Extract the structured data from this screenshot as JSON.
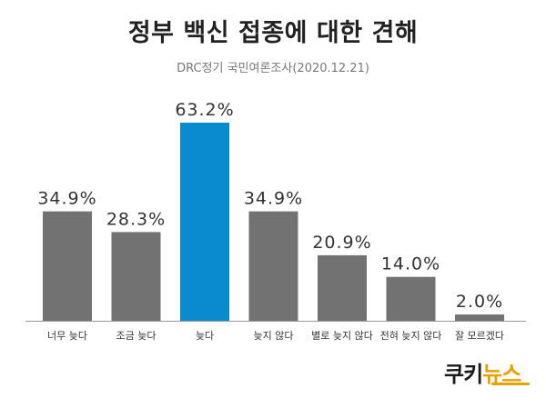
{
  "chart_data": {
    "type": "bar",
    "title": "정부 백신 접종에 대한 견해",
    "subtitle": "DRC정기 국민여론조사(2020.12.21)",
    "categories": [
      "너무 늦다",
      "조금 늦다",
      "늦다",
      "늦지 않다",
      "별로 늦지 않다",
      "전혀 늦지 않다",
      "잘 모르겠다"
    ],
    "values": [
      34.9,
      28.3,
      63.2,
      34.9,
      20.9,
      14.0,
      2.0
    ],
    "value_labels": [
      "34.9%",
      "28.3%",
      "63.2%",
      "34.9%",
      "20.9%",
      "14.0%",
      "2.0%"
    ],
    "highlight_index": 2,
    "ylim": [
      0,
      63.2
    ],
    "grid": false,
    "colors": {
      "default": "#727272",
      "highlight": "#0a8bd0",
      "axis": "#999999",
      "value_text": "#333333",
      "category_text": "#333333"
    }
  },
  "logo": {
    "text_main": "쿠키",
    "text_accent": "뉴스"
  }
}
